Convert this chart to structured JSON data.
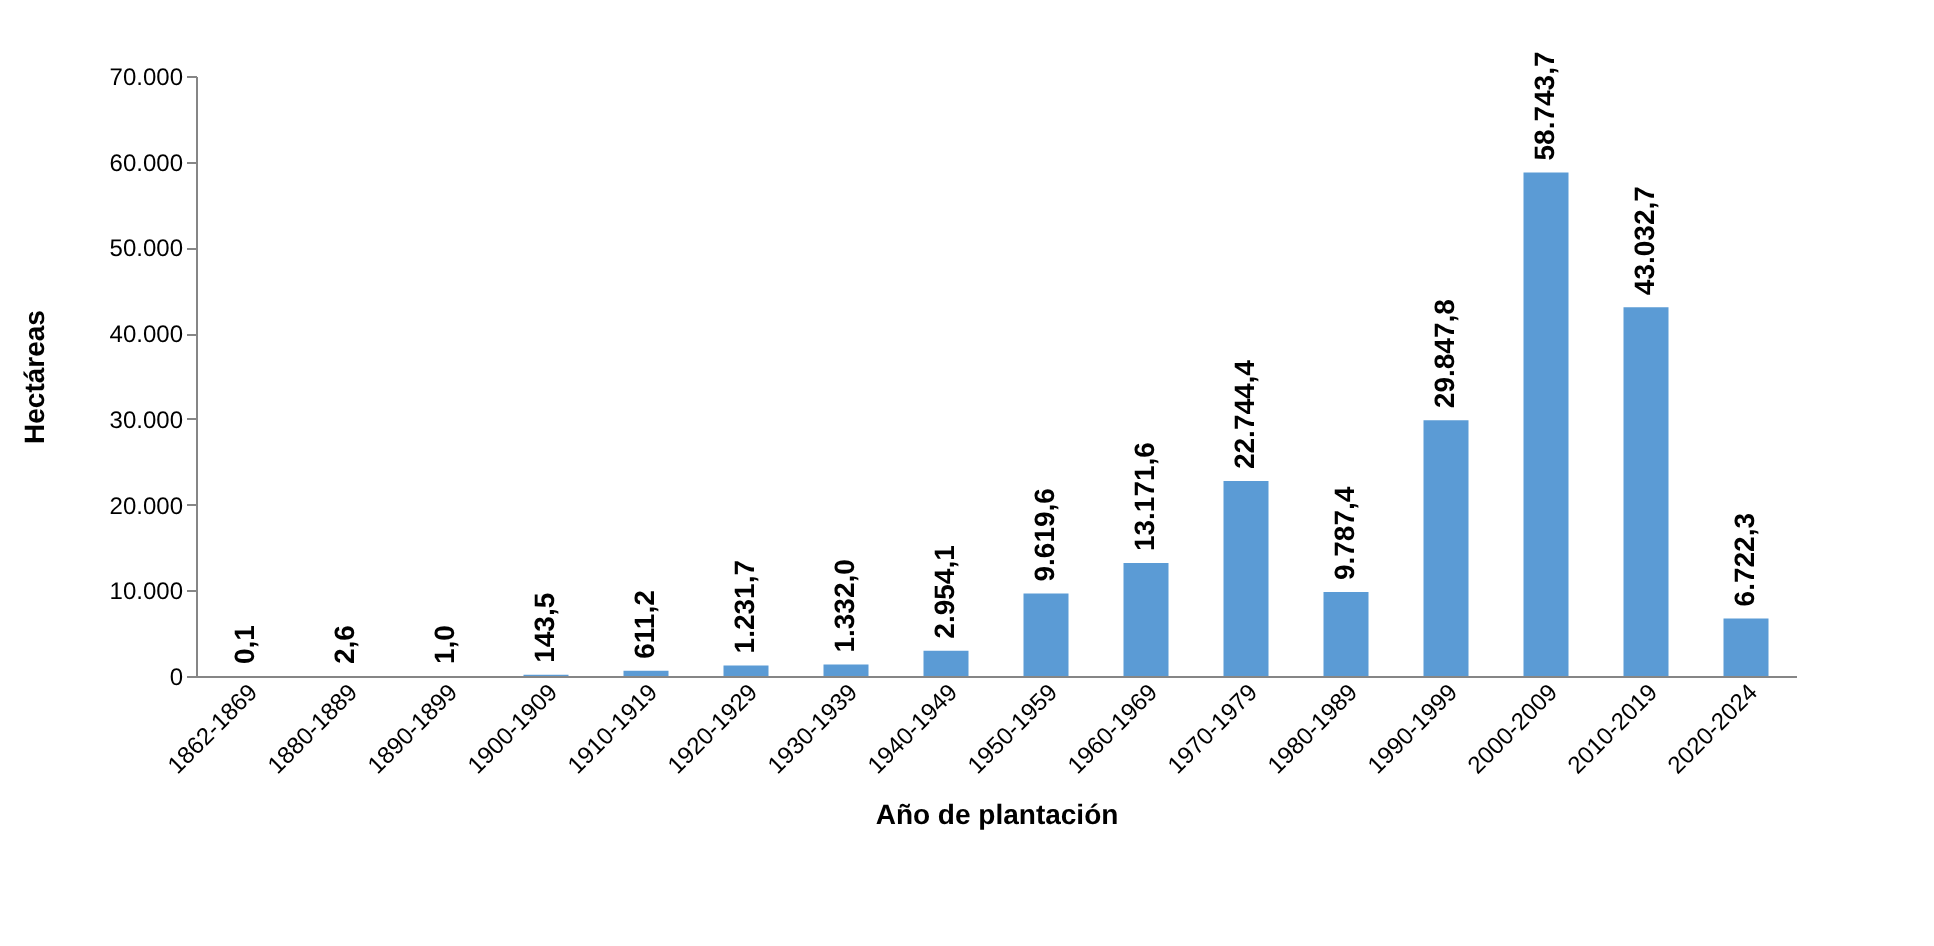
{
  "chart_data": {
    "type": "bar",
    "xlabel": "Año de plantación",
    "ylabel": "Hectáreas",
    "categories": [
      "1862-1869",
      "1880-1889",
      "1890-1899",
      "1900-1909",
      "1910-1919",
      "1920-1929",
      "1930-1939",
      "1940-1949",
      "1950-1959",
      "1960-1969",
      "1970-1979",
      "1980-1989",
      "1990-1999",
      "2000-2009",
      "2010-2019",
      "2020-2024"
    ],
    "values": [
      0.1,
      2.6,
      1.0,
      143.5,
      611.2,
      1231.7,
      1332.0,
      2954.1,
      9619.6,
      13171.6,
      22744.4,
      9787.4,
      29847.8,
      58743.7,
      43032.7,
      6722.3
    ],
    "value_labels": [
      "0,1",
      "2,6",
      "1,0",
      "143,5",
      "611,2",
      "1.231,7",
      "1.332,0",
      "2.954,1",
      "9.619,6",
      "13.171,6",
      "22.744,4",
      "9.787,4",
      "29.847,8",
      "58.743,7",
      "43.032,7",
      "6.722,3"
    ],
    "color": "#5b9bd5",
    "ylim": [
      0,
      70000
    ],
    "yticks": [
      {
        "value": 0,
        "label": "0"
      },
      {
        "value": 10000,
        "label": "10.000"
      },
      {
        "value": 20000,
        "label": "20.000"
      },
      {
        "value": 30000,
        "label": "30.000"
      },
      {
        "value": 40000,
        "label": "40.000"
      },
      {
        "value": 50000,
        "label": "50.000"
      },
      {
        "value": 60000,
        "label": "60.000"
      },
      {
        "value": 70000,
        "label": "70.000"
      }
    ],
    "grid": false
  }
}
